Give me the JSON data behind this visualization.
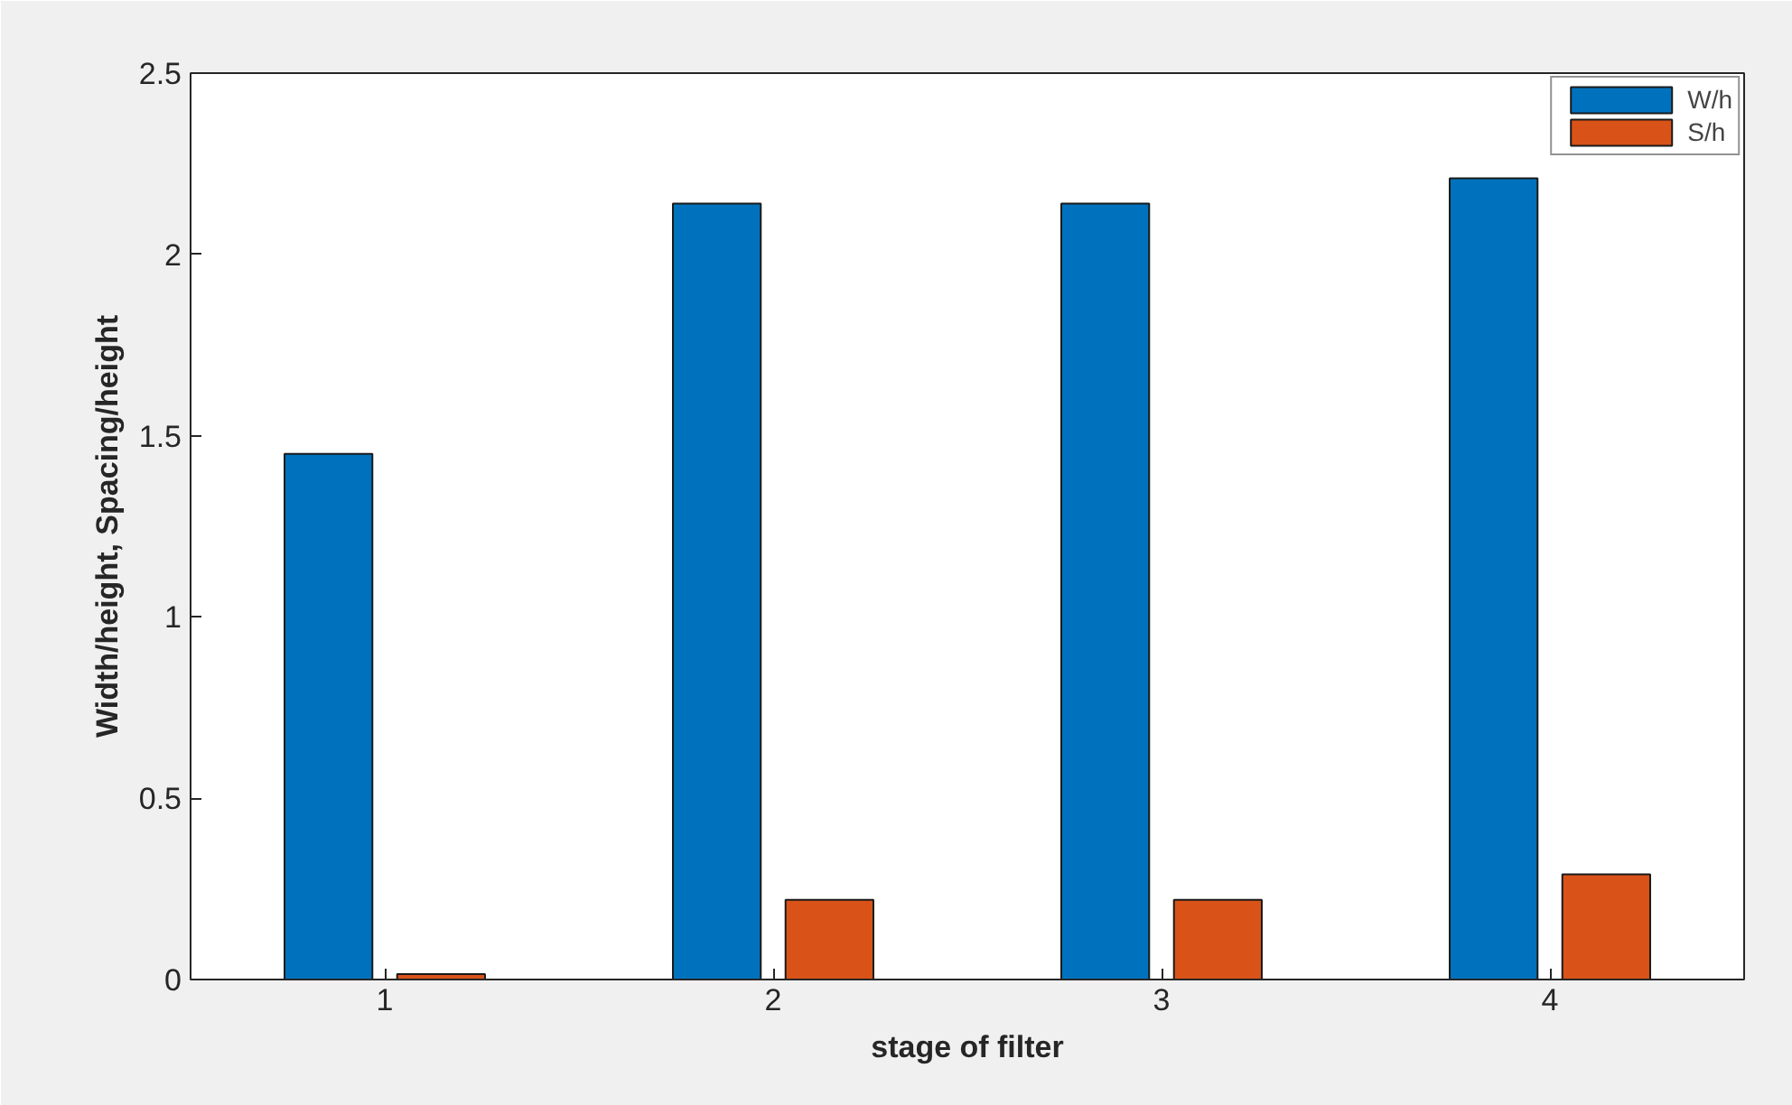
{
  "chart_data": {
    "type": "bar",
    "xlabel": "stage of filter",
    "ylabel": "Width/height, Spacing/height",
    "categories": [
      "1",
      "2",
      "3",
      "4"
    ],
    "series": [
      {
        "name": "W/h",
        "color": "#0072bd",
        "values": [
          1.45,
          2.14,
          2.14,
          2.21
        ]
      },
      {
        "name": "S/h",
        "color": "#d95319",
        "values": [
          0.015,
          0.22,
          0.22,
          0.29
        ]
      }
    ],
    "ylim": [
      0,
      2.5
    ],
    "yticks": [
      0,
      0.5,
      1,
      1.5,
      2,
      2.5
    ],
    "grid": false,
    "legend": "top right"
  }
}
